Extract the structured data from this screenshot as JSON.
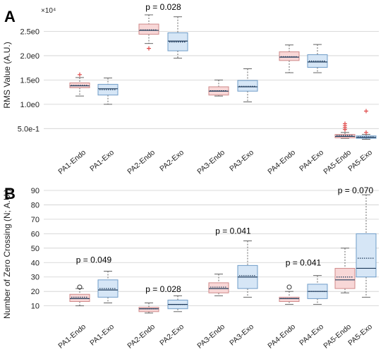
{
  "colors": {
    "endo_fill": "#f8d7d7",
    "endo_stroke": "#d08a8a",
    "exo_fill": "#d6e6f6",
    "exo_stroke": "#6f9cc8",
    "median": "#1f3a5a",
    "mean": "#1f3a5a",
    "outlier_cross": "#e04848",
    "outlier_circle": "#333333",
    "whisker": "#555555",
    "grid": "#cfcfcf"
  },
  "chart_data": [
    {
      "type": "box",
      "panel_label": "A",
      "ylabel": "RMS Value (A.U.)",
      "exponent_label": "×10⁴",
      "ylim": [
        0.2,
        3.0
      ],
      "yticks": [
        0.5,
        1.0,
        1.5,
        2.0,
        2.5
      ],
      "ytick_labels": [
        "5.0e-1",
        "1.0e0",
        "1.5e0",
        "2.0e0",
        "2.5e0"
      ],
      "grid": "horizontal",
      "categories": [
        "PA1-Endo",
        "PA1-Exo",
        "PA2-Endo",
        "PA2-Exo",
        "PA3-Endo",
        "PA3-Exo",
        "PA4-Endo",
        "PA4-Exo",
        "PA5-Endo",
        "PA5-Exo"
      ],
      "boxes": [
        {
          "group": "endo",
          "min": 1.17,
          "q1": 1.34,
          "median": 1.38,
          "mean": 1.39,
          "q3": 1.44,
          "max": 1.55,
          "outliers": [
            1.61
          ],
          "outlier_style": "cross"
        },
        {
          "group": "exo",
          "min": 1.0,
          "q1": 1.19,
          "median": 1.32,
          "mean": 1.3,
          "q3": 1.41,
          "max": 1.54,
          "outliers": [],
          "outlier_style": "cross"
        },
        {
          "group": "endo",
          "min": 2.25,
          "q1": 2.44,
          "median": 2.52,
          "mean": 2.53,
          "q3": 2.65,
          "max": 2.84,
          "outliers": [
            2.15
          ],
          "outlier_style": "cross"
        },
        {
          "group": "exo",
          "min": 1.95,
          "q1": 2.1,
          "median": 2.3,
          "mean": 2.28,
          "q3": 2.47,
          "max": 2.8,
          "outliers": [],
          "outlier_style": "cross"
        },
        {
          "group": "endo",
          "min": 1.17,
          "q1": 1.19,
          "median": 1.27,
          "mean": 1.28,
          "q3": 1.36,
          "max": 1.5,
          "outliers": [],
          "outlier_style": "cross"
        },
        {
          "group": "exo",
          "min": 1.05,
          "q1": 1.27,
          "median": 1.36,
          "mean": 1.37,
          "q3": 1.49,
          "max": 1.73,
          "outliers": [],
          "outlier_style": "cross"
        },
        {
          "group": "endo",
          "min": 1.65,
          "q1": 1.9,
          "median": 1.97,
          "mean": 1.98,
          "q3": 2.08,
          "max": 2.22,
          "outliers": [],
          "outlier_style": "cross"
        },
        {
          "group": "exo",
          "min": 1.65,
          "q1": 1.76,
          "median": 1.87,
          "mean": 1.89,
          "q3": 2.02,
          "max": 2.23,
          "outliers": [],
          "outlier_style": "cross"
        },
        {
          "group": "endo",
          "min": 0.3,
          "q1": 0.31,
          "median": 0.34,
          "mean": 0.36,
          "q3": 0.38,
          "max": 0.42,
          "outliers": [
            0.48,
            0.52,
            0.56,
            0.6
          ],
          "outlier_style": "cross"
        },
        {
          "group": "exo",
          "min": 0.28,
          "q1": 0.3,
          "median": 0.32,
          "mean": 0.33,
          "q3": 0.35,
          "max": 0.38,
          "outliers": [
            0.42,
            0.86
          ],
          "outlier_style": "cross"
        }
      ],
      "annotations": [
        {
          "text": "p = 0.028",
          "x_between": [
            2,
            3
          ],
          "y": 2.96
        }
      ]
    },
    {
      "type": "box",
      "panel_label": "B",
      "ylabel": "Number of Zero Crossing (N; A.U.)",
      "ylim": [
        2,
        90
      ],
      "yticks": [
        10,
        20,
        30,
        40,
        50,
        60,
        70,
        80,
        90
      ],
      "ytick_labels": [
        "10",
        "20",
        "30",
        "40",
        "50",
        "60",
        "70",
        "80",
        "90"
      ],
      "grid": "horizontal",
      "categories": [
        "PA1-Endo",
        "PA1-Exo",
        "PA2-Endo",
        "PA2-Exo",
        "PA3-Endo",
        "PA3-Exo",
        "PA4-Endo",
        "PA4-Exo",
        "PA5-Endo",
        "PA5-Exo"
      ],
      "boxes": [
        {
          "group": "endo",
          "min": 10,
          "q1": 13,
          "median": 15,
          "mean": 16,
          "q3": 18,
          "max": 22,
          "outliers": [
            23
          ],
          "outlier_style": "circle"
        },
        {
          "group": "exo",
          "min": 12,
          "q1": 16,
          "median": 21,
          "mean": 22,
          "q3": 28,
          "max": 34,
          "outliers": [],
          "outlier_style": "circle"
        },
        {
          "group": "endo",
          "min": 5,
          "q1": 6,
          "median": 8,
          "mean": 8,
          "q3": 9,
          "max": 12,
          "outliers": [],
          "outlier_style": "circle"
        },
        {
          "group": "exo",
          "min": 6,
          "q1": 8,
          "median": 11,
          "mean": 11,
          "q3": 14,
          "max": 17,
          "outliers": [],
          "outlier_style": "circle"
        },
        {
          "group": "endo",
          "min": 17,
          "q1": 19,
          "median": 22,
          "mean": 23,
          "q3": 26,
          "max": 32,
          "outliers": [],
          "outlier_style": "circle"
        },
        {
          "group": "exo",
          "min": 16,
          "q1": 22,
          "median": 30,
          "mean": 31,
          "q3": 38,
          "max": 55,
          "outliers": [],
          "outlier_style": "circle"
        },
        {
          "group": "endo",
          "min": 11,
          "q1": 13,
          "median": 15,
          "mean": 15,
          "q3": 16,
          "max": 20,
          "outliers": [
            23
          ],
          "outlier_style": "circle"
        },
        {
          "group": "exo",
          "min": 11,
          "q1": 15,
          "median": 20,
          "mean": 20,
          "q3": 25,
          "max": 31,
          "outliers": [],
          "outlier_style": "circle"
        },
        {
          "group": "endo",
          "min": 19,
          "q1": 22,
          "median": 28,
          "mean": 30,
          "q3": 36,
          "max": 50,
          "outliers": [],
          "outlier_style": "circle"
        },
        {
          "group": "exo",
          "min": 16,
          "q1": 30,
          "median": 36,
          "mean": 43,
          "q3": 60,
          "max": 87,
          "outliers": [],
          "outlier_style": "circle"
        }
      ],
      "annotations": [
        {
          "text": "p = 0.049",
          "x_between": [
            0,
            1
          ],
          "y": 40
        },
        {
          "text": "p = 0.028",
          "x_between": [
            2,
            3
          ],
          "y": 19.5
        },
        {
          "text": "p = 0.041",
          "x_between": [
            4,
            5
          ],
          "y": 60
        },
        {
          "text": "p = 0.041",
          "x_between": [
            6,
            7
          ],
          "y": 38
        },
        {
          "text": "p = 0.070",
          "x_between": [
            8,
            9
          ],
          "y": 90
        }
      ]
    }
  ]
}
